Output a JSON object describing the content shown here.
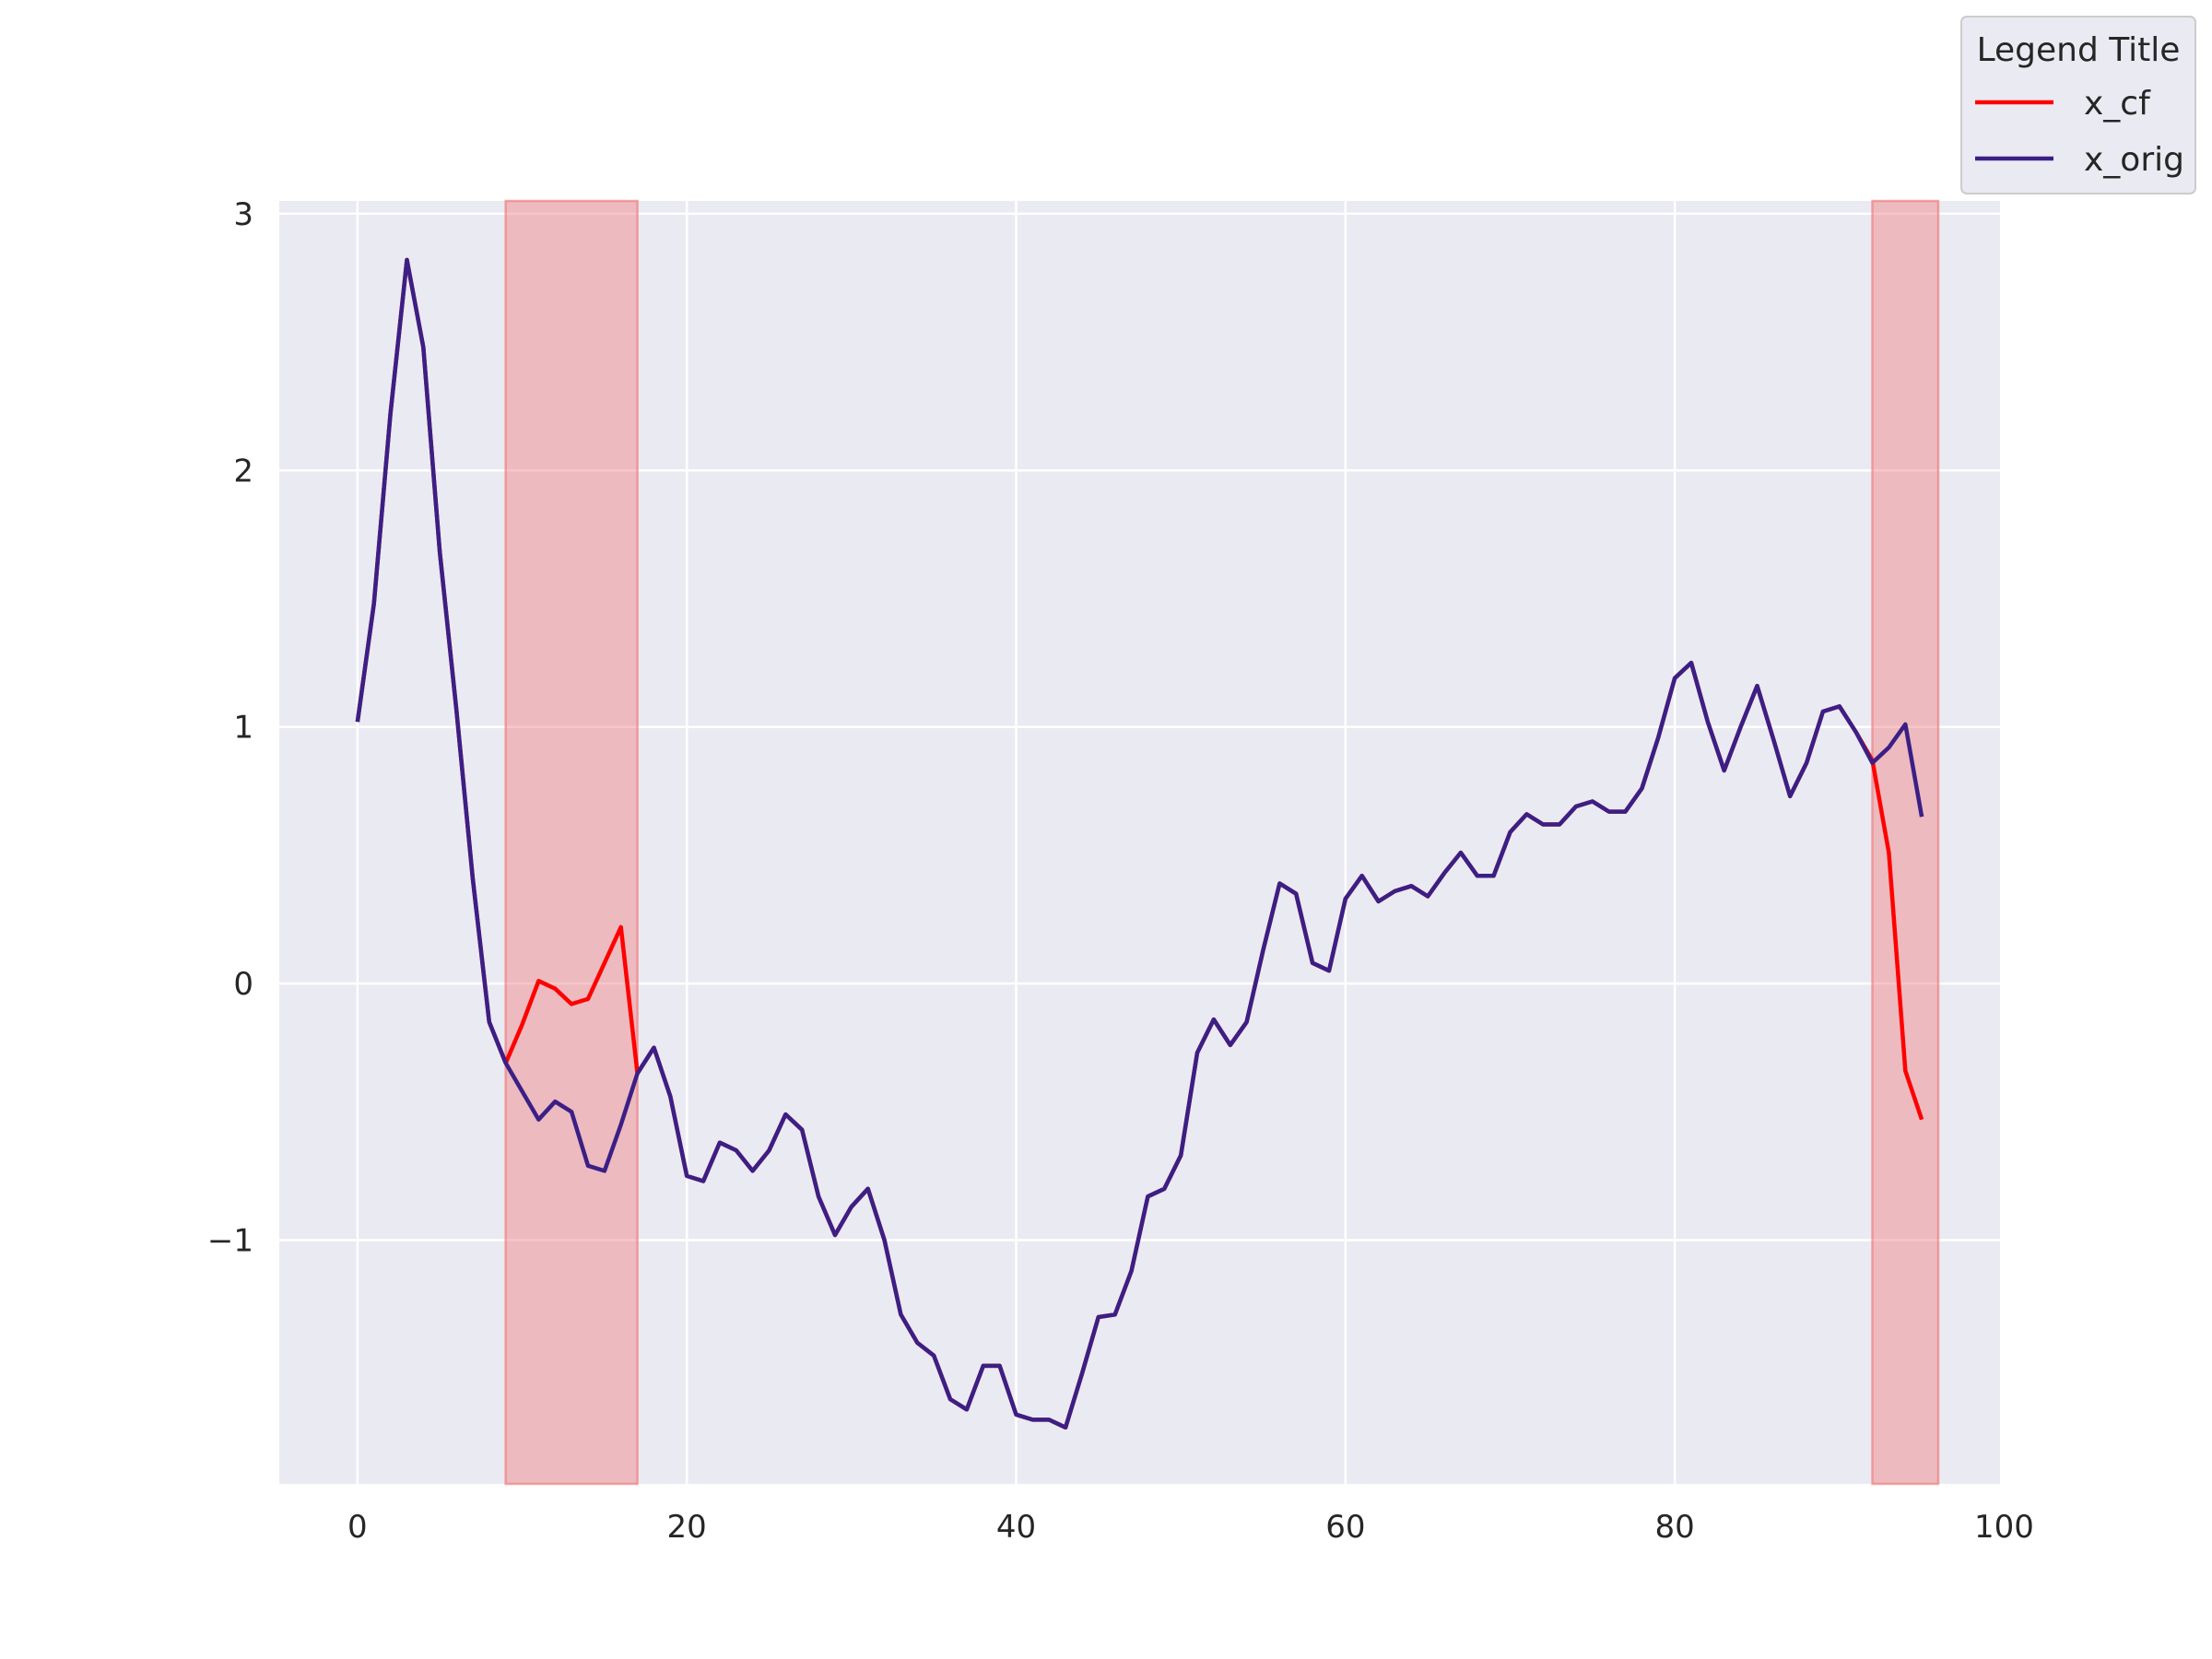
{
  "chart_data": {
    "type": "line",
    "title": "",
    "xlabel": "",
    "ylabel": "",
    "xlim": [
      -4.75,
      99.75
    ],
    "ylim": [
      -1.95,
      3.05
    ],
    "xticks": [
      0,
      20,
      40,
      60,
      80,
      100
    ],
    "xtick_labels": [
      "0",
      "20",
      "40",
      "60",
      "80",
      "100"
    ],
    "yticks": [
      -1,
      0,
      1,
      2,
      3
    ],
    "ytick_labels": [
      "−1",
      "0",
      "1",
      "2",
      "3"
    ],
    "grid": true,
    "background": "#eaeaf2",
    "legend": {
      "title": "Legend Title",
      "placement": "top-right (outside axes)",
      "entries": [
        "x_cf",
        "x_orig"
      ]
    },
    "highlight_regions": [
      {
        "x_start": 9,
        "x_end": 17,
        "color": "#f08080"
      },
      {
        "x_start": 92,
        "x_end": 96,
        "color": "#f08080"
      }
    ],
    "series": [
      {
        "name": "x_cf",
        "color": "#ff0000",
        "x": [
          0,
          1,
          2,
          3,
          4,
          5,
          6,
          7,
          8,
          9,
          10,
          11,
          12,
          13,
          14,
          15,
          16,
          17,
          18,
          19,
          20,
          21,
          22,
          23,
          24,
          25,
          26,
          27,
          28,
          29,
          30,
          31,
          32,
          33,
          34,
          35,
          36,
          37,
          38,
          39,
          40,
          41,
          42,
          43,
          44,
          45,
          46,
          47,
          48,
          49,
          50,
          51,
          52,
          53,
          54,
          55,
          56,
          57,
          58,
          59,
          60,
          61,
          62,
          63,
          64,
          65,
          66,
          67,
          68,
          69,
          70,
          71,
          72,
          73,
          74,
          75,
          76,
          77,
          78,
          79,
          80,
          81,
          82,
          83,
          84,
          85,
          86,
          87,
          88,
          89,
          90,
          91,
          92,
          93,
          94,
          95
        ],
        "y": [
          1.02,
          1.48,
          2.22,
          2.82,
          2.48,
          1.68,
          1.07,
          0.41,
          -0.15,
          -0.31,
          -0.16,
          0.01,
          -0.02,
          -0.08,
          -0.06,
          0.08,
          0.22,
          -0.35,
          -0.25,
          -0.44,
          -0.75,
          -0.77,
          -0.62,
          -0.65,
          -0.73,
          -0.65,
          -0.51,
          -0.57,
          -0.83,
          -0.98,
          -0.87,
          -0.8,
          -1.0,
          -1.29,
          -1.4,
          -1.45,
          -1.62,
          -1.66,
          -1.49,
          -1.49,
          -1.68,
          -1.7,
          -1.7,
          -1.73,
          -1.52,
          -1.3,
          -1.29,
          -1.12,
          -0.83,
          -0.8,
          -0.67,
          -0.27,
          -0.14,
          -0.24,
          -0.15,
          0.13,
          0.39,
          0.35,
          0.08,
          0.05,
          0.33,
          0.42,
          0.32,
          0.36,
          0.38,
          0.34,
          0.43,
          0.51,
          0.42,
          0.42,
          0.59,
          0.66,
          0.62,
          0.62,
          0.69,
          0.71,
          0.67,
          0.67,
          0.76,
          0.96,
          1.19,
          1.25,
          1.02,
          0.83,
          1.0,
          1.16,
          0.95,
          0.73,
          0.86,
          1.06,
          1.08,
          0.98,
          0.87,
          0.51,
          -0.34,
          -0.53
        ]
      },
      {
        "name": "x_orig",
        "color": "#3b1f85",
        "x": [
          0,
          1,
          2,
          3,
          4,
          5,
          6,
          7,
          8,
          9,
          10,
          11,
          12,
          13,
          14,
          15,
          16,
          17,
          18,
          19,
          20,
          21,
          22,
          23,
          24,
          25,
          26,
          27,
          28,
          29,
          30,
          31,
          32,
          33,
          34,
          35,
          36,
          37,
          38,
          39,
          40,
          41,
          42,
          43,
          44,
          45,
          46,
          47,
          48,
          49,
          50,
          51,
          52,
          53,
          54,
          55,
          56,
          57,
          58,
          59,
          60,
          61,
          62,
          63,
          64,
          65,
          66,
          67,
          68,
          69,
          70,
          71,
          72,
          73,
          74,
          75,
          76,
          77,
          78,
          79,
          80,
          81,
          82,
          83,
          84,
          85,
          86,
          87,
          88,
          89,
          90,
          91,
          92,
          93,
          94,
          95
        ],
        "y": [
          1.02,
          1.48,
          2.22,
          2.82,
          2.48,
          1.68,
          1.07,
          0.41,
          -0.15,
          -0.31,
          -0.42,
          -0.53,
          -0.46,
          -0.5,
          -0.71,
          -0.73,
          -0.55,
          -0.35,
          -0.25,
          -0.44,
          -0.75,
          -0.77,
          -0.62,
          -0.65,
          -0.73,
          -0.65,
          -0.51,
          -0.57,
          -0.83,
          -0.98,
          -0.87,
          -0.8,
          -1.0,
          -1.29,
          -1.4,
          -1.45,
          -1.62,
          -1.66,
          -1.49,
          -1.49,
          -1.68,
          -1.7,
          -1.7,
          -1.73,
          -1.52,
          -1.3,
          -1.29,
          -1.12,
          -0.83,
          -0.8,
          -0.67,
          -0.27,
          -0.14,
          -0.24,
          -0.15,
          0.13,
          0.39,
          0.35,
          0.08,
          0.05,
          0.33,
          0.42,
          0.32,
          0.36,
          0.38,
          0.34,
          0.43,
          0.51,
          0.42,
          0.42,
          0.59,
          0.66,
          0.62,
          0.62,
          0.69,
          0.71,
          0.67,
          0.67,
          0.76,
          0.96,
          1.19,
          1.25,
          1.02,
          0.83,
          1.0,
          1.16,
          0.95,
          0.73,
          0.86,
          1.06,
          1.08,
          0.98,
          0.86,
          0.92,
          1.01,
          0.65
        ]
      }
    ]
  }
}
